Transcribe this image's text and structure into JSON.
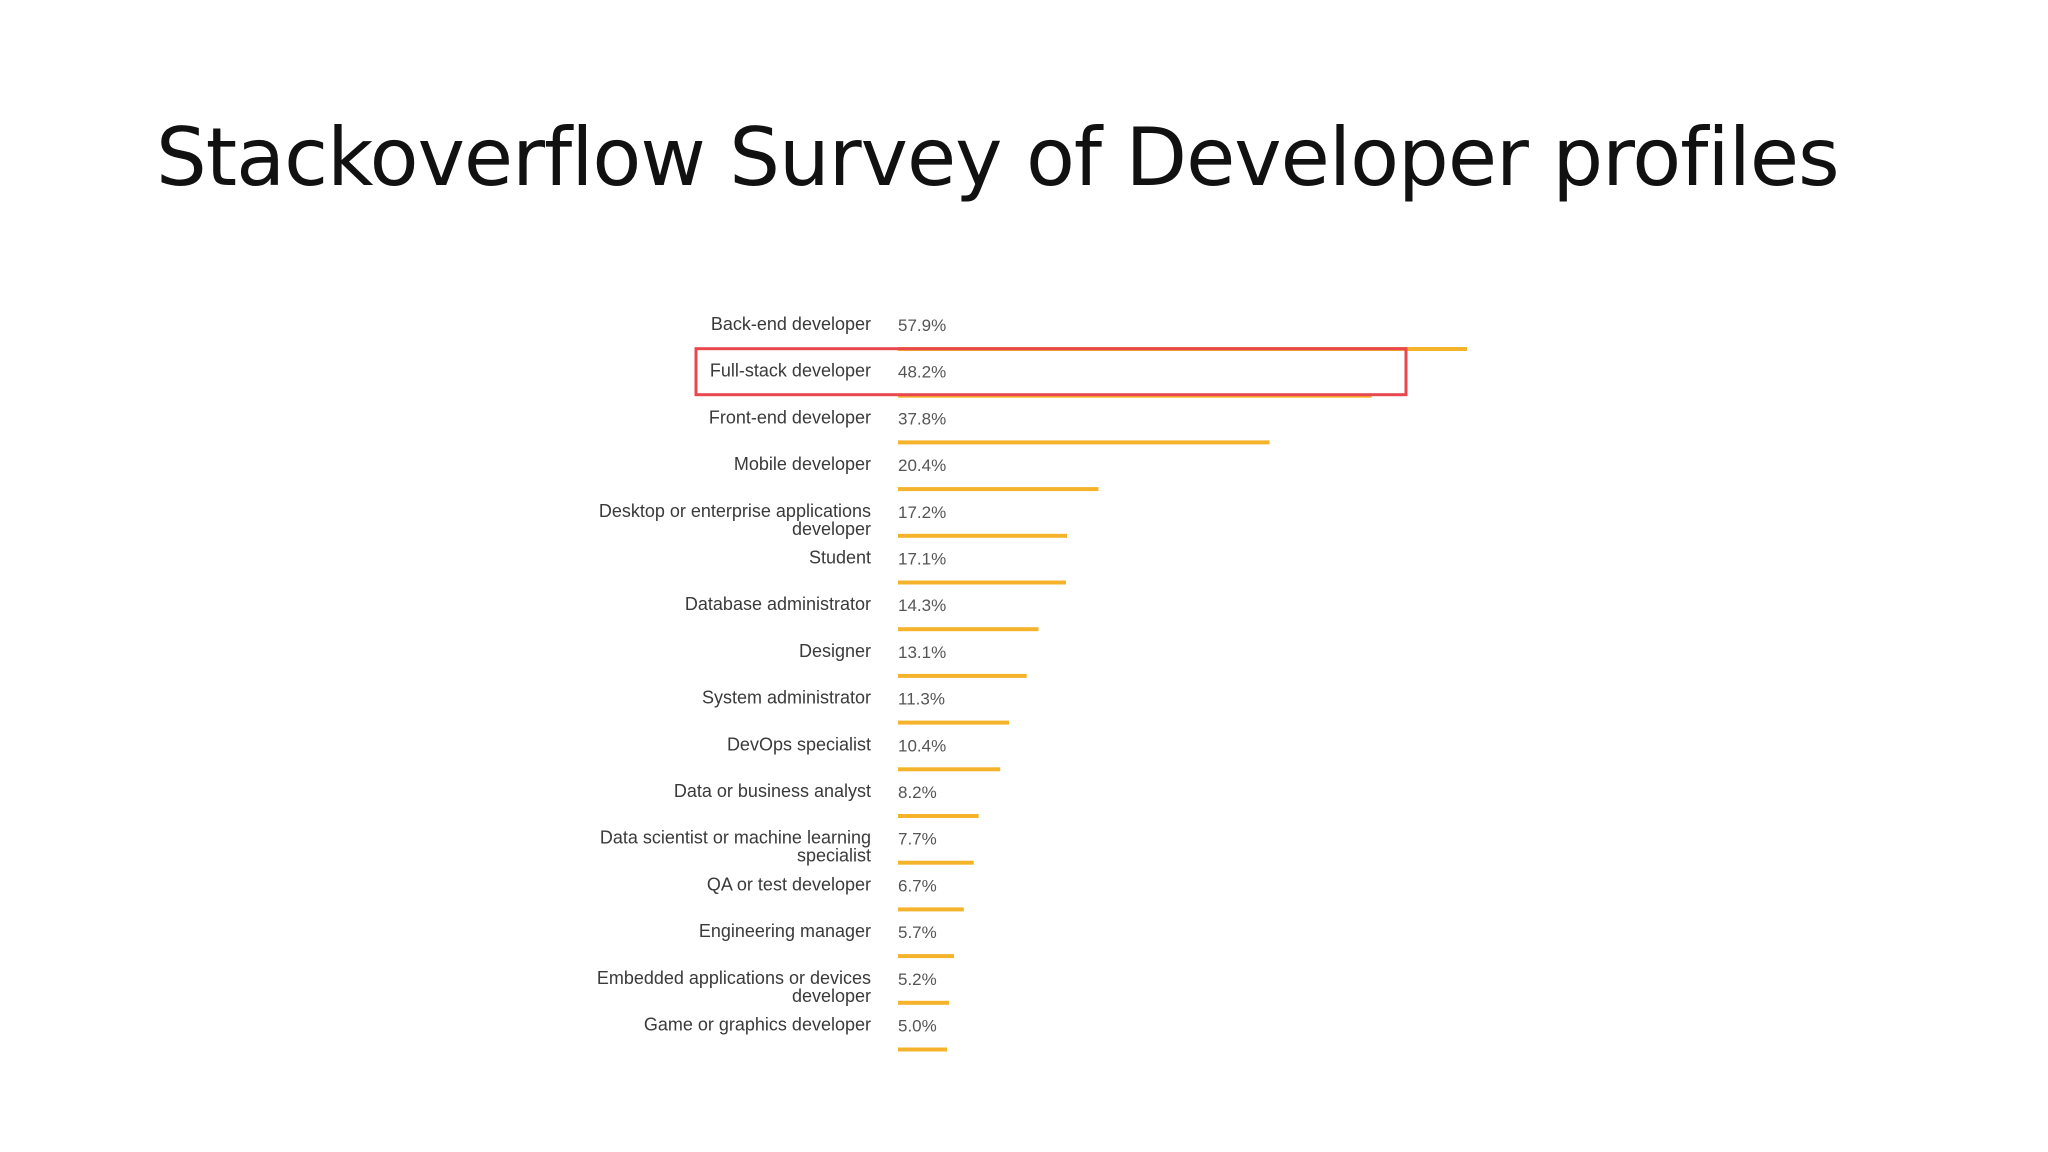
{
  "slide": {
    "title": "Stackoverflow Survey of Developer profiles"
  },
  "chart_data": {
    "type": "bar",
    "orientation": "horizontal",
    "title": "",
    "xlabel": "",
    "ylabel": "",
    "grid": false,
    "legend": "none",
    "value_suffix": "%",
    "xlim": [
      0,
      57.9
    ],
    "bar_color": "#f4b32b",
    "highlight_color": "#e8474e",
    "highlighted_category": "Full-stack developer",
    "categories": [
      [
        "Back-end developer"
      ],
      [
        "Full-stack developer"
      ],
      [
        "Front-end developer"
      ],
      [
        "Mobile developer"
      ],
      [
        "Desktop or enterprise applications",
        "developer"
      ],
      [
        "Student"
      ],
      [
        "Database administrator"
      ],
      [
        "Designer"
      ],
      [
        "System administrator"
      ],
      [
        "DevOps specialist"
      ],
      [
        "Data or business analyst"
      ],
      [
        "Data scientist or machine learning",
        "specialist"
      ],
      [
        "QA or test developer"
      ],
      [
        "Engineering manager"
      ],
      [
        "Embedded applications or devices",
        "developer"
      ],
      [
        "Game or graphics developer"
      ]
    ],
    "values": [
      57.9,
      48.2,
      37.8,
      20.4,
      17.2,
      17.1,
      14.3,
      13.1,
      11.3,
      10.4,
      8.2,
      7.7,
      6.7,
      5.7,
      5.2,
      5.0
    ],
    "value_labels": [
      "57.9%",
      "48.2%",
      "37.8%",
      "20.4%",
      "17.2%",
      "17.1%",
      "14.3%",
      "13.1%",
      "11.3%",
      "10.4%",
      "8.2%",
      "7.7%",
      "6.7%",
      "5.7%",
      "5.2%",
      "5.0%"
    ]
  }
}
